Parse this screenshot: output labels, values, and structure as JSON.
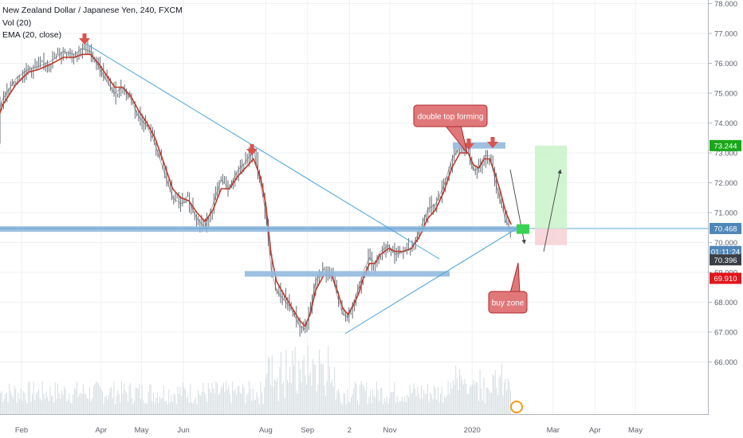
{
  "legend": {
    "title": "New Zealand Dollar / Japanese Yen, 240, FXCM",
    "volume": "Vol (20)",
    "ema": "EMA (20, close)"
  },
  "colors": {
    "grid": "#eef0f3",
    "price_line": "#4a9fd4",
    "ema": "#c0392b",
    "candles": "#555e66",
    "volume": "#d6dde0",
    "zone": "#94b9de",
    "trendline": "#4aa3df",
    "arrow_marker": "#d9534f",
    "callout_fill": "#e0787a",
    "callout_border": "#b0282e",
    "buy_marker": "#39d353",
    "profit_zone": "#c9f2c9",
    "loss_zone": "#f6d0d3",
    "label_green": "#1aa71a",
    "label_dark": "#3a3f45",
    "label_red": "#e3141c",
    "label_blue": "#4a9fd4"
  },
  "chart_data": {
    "type": "line",
    "title": "New Zealand Dollar / Japanese Yen, 240, FXCM",
    "ylim": [
      65.5,
      78.1
    ],
    "y_ticks": [
      66,
      67,
      68,
      69,
      70,
      71,
      72,
      73,
      74,
      75,
      76,
      77,
      78
    ],
    "y_tick_labels": [
      "66.000",
      "67.000",
      "68.000",
      "69.000",
      "70.000",
      "71.000",
      "72.000",
      "73.000",
      "74.000",
      "75.000",
      "76.000",
      "77.000",
      "78.000"
    ],
    "x_tick_labels": [
      "Feb",
      "Apr",
      "May",
      "Jun",
      "Aug",
      "Sep",
      "2",
      "Nov",
      "2020",
      "Mar",
      "Apr",
      "May"
    ],
    "x_tick_dates": [
      "2019-02-01",
      "2019-04-01",
      "2019-05-01",
      "2019-06-01",
      "2019-08-01",
      "2019-09-01",
      "2019-10-02",
      "2019-11-01",
      "2020-01-01",
      "2020-03-01",
      "2020-04-01",
      "2020-05-01"
    ],
    "series": [
      {
        "x": [
          "2019-01-09",
          "2019-01-18",
          "2019-01-28",
          "2019-02-06",
          "2019-02-14",
          "2019-02-24",
          "2019-03-04",
          "2019-03-12",
          "2019-03-18",
          "2019-03-24",
          "2019-03-30",
          "2019-04-05",
          "2019-04-11",
          "2019-04-17",
          "2019-04-23",
          "2019-04-29",
          "2019-05-05",
          "2019-05-11",
          "2019-05-18",
          "2019-05-24",
          "2019-05-30",
          "2019-06-05",
          "2019-06-11",
          "2019-06-17",
          "2019-06-23",
          "2019-06-29",
          "2019-07-05",
          "2019-07-11",
          "2019-07-17",
          "2019-07-23",
          "2019-07-28",
          "2019-08-01",
          "2019-08-05",
          "2019-08-09",
          "2019-08-14",
          "2019-08-18",
          "2019-08-22",
          "2019-08-26",
          "2019-08-30",
          "2019-09-03",
          "2019-09-07",
          "2019-09-13",
          "2019-09-19",
          "2019-09-23",
          "2019-09-27",
          "2019-10-01",
          "2019-10-05",
          "2019-10-09",
          "2019-10-13",
          "2019-10-17",
          "2019-10-21",
          "2019-10-25",
          "2019-10-31",
          "2019-11-05",
          "2019-11-11",
          "2019-11-17",
          "2019-11-23",
          "2019-11-29",
          "2019-12-05",
          "2019-12-11",
          "2019-12-17",
          "2019-12-23",
          "2019-12-29",
          "2020-01-02",
          "2020-01-06",
          "2020-01-10",
          "2020-01-14",
          "2020-01-18",
          "2020-01-22",
          "2020-01-26",
          "2020-01-30"
        ],
        "values": [
          73.5,
          74.8,
          75.5,
          75.8,
          75.9,
          76.1,
          76.4,
          76.3,
          76.5,
          76.4,
          75.9,
          75.4,
          75.0,
          75.2,
          74.8,
          74.2,
          73.9,
          73.3,
          72.3,
          71.5,
          71.3,
          71.4,
          70.8,
          70.5,
          71.3,
          72.1,
          71.8,
          72.4,
          72.7,
          73.1,
          72.0,
          71.0,
          69.1,
          68.4,
          68.1,
          67.9,
          67.6,
          67.2,
          67.1,
          67.7,
          68.7,
          69.1,
          68.9,
          68.2,
          67.6,
          67.5,
          68.0,
          68.5,
          69.1,
          69.5,
          69.3,
          69.7,
          69.9,
          69.6,
          69.7,
          69.8,
          70.4,
          71.1,
          71.3,
          71.9,
          72.8,
          73.2,
          73.0,
          72.4,
          72.5,
          72.9,
          72.9,
          72.1,
          71.4,
          70.7,
          70.45
        ]
      }
    ],
    "ema_values": [
      73.4,
      74.6,
      75.3,
      75.7,
      75.8,
      76.0,
      76.2,
      76.2,
      76.3,
      76.3,
      76.0,
      75.6,
      75.2,
      75.2,
      74.9,
      74.4,
      74.0,
      73.5,
      72.6,
      71.8,
      71.5,
      71.4,
      71.0,
      70.7,
      71.1,
      71.8,
      71.8,
      72.2,
      72.5,
      72.8,
      72.2,
      71.3,
      69.6,
      68.7,
      68.3,
      68.0,
      67.7,
      67.4,
      67.2,
      67.6,
      68.4,
      68.9,
      68.9,
      68.4,
      67.8,
      67.6,
      67.9,
      68.3,
      68.9,
      69.3,
      69.3,
      69.6,
      69.8,
      69.7,
      69.7,
      69.8,
      70.2,
      70.8,
      71.1,
      71.7,
      72.5,
      73.0,
      73.0,
      72.6,
      72.5,
      72.8,
      72.8,
      72.3,
      71.7,
      71.0,
      70.6
    ],
    "price_labels": [
      "73.244",
      "70.468",
      "01:11:24",
      "70.396",
      "69.910"
    ],
    "annotations": [
      "double top forming",
      "buy zone"
    ],
    "horizontal_zones": [
      70.45,
      68.95,
      73.25
    ],
    "position": {
      "entry": 70.47,
      "target": 73.244,
      "stop": 69.91
    }
  }
}
